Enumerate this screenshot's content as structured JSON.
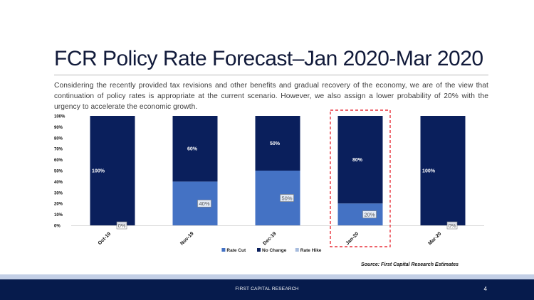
{
  "slide": {
    "title": "FCR Policy Rate Forecast–Jan 2020-Mar 2020",
    "description": "Considering the recently provided tax revisions and other benefits and gradual recovery of the economy, we are of the view that continuation of policy rates is appropriate at the current scenario. However, we also assign a lower probability of 20% with the urgency to accelerate the economic growth.",
    "source": "Source: First Capital Research Estimates",
    "footer": "FIRST CAPITAL RESEARCH",
    "page_number": "4"
  },
  "colors": {
    "rate_cut": "#4472c4",
    "no_change": "#0a1f5c",
    "rate_hike": "#a7bcde",
    "highlight": "#e8323c"
  },
  "chart_data": {
    "type": "bar",
    "stacked": true,
    "title": "",
    "xlabel": "",
    "ylabel": "",
    "ylim": [
      0,
      100
    ],
    "y_ticks": [
      "0%",
      "10%",
      "20%",
      "30%",
      "40%",
      "50%",
      "60%",
      "70%",
      "80%",
      "90%",
      "100%"
    ],
    "categories": [
      "Oct-19",
      "Nov-19",
      "Dec-19",
      "Jan-20",
      "Mar-20"
    ],
    "series": [
      {
        "name": "Rate Cut",
        "values": [
          0,
          40,
          50,
          20,
          0
        ],
        "labels": [
          "0%",
          "40%",
          "50%",
          "20%",
          "0%"
        ]
      },
      {
        "name": "No Change",
        "values": [
          100,
          60,
          50,
          80,
          100
        ],
        "labels": [
          "100%",
          "60%",
          "50%",
          "80%",
          "100%"
        ]
      },
      {
        "name": "Rate Hike",
        "values": [
          0,
          0,
          0,
          0,
          0
        ],
        "labels": [
          "",
          "",
          "",
          "",
          ""
        ]
      }
    ],
    "highlighted_category": "Jan-20",
    "legend": "bottom"
  }
}
